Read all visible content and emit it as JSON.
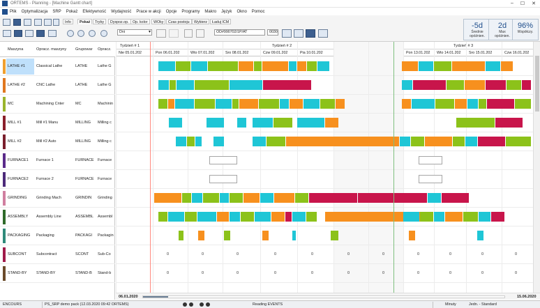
{
  "window": {
    "title": "ORTEMS - Planning - [Machine Gantt chart]"
  },
  "menu": [
    "Plik",
    "Optymalizacja",
    "SRP",
    "Pokaż",
    "Efektywność",
    "Wydajność",
    "Prace w akcji",
    "Opcje",
    "Programy",
    "Makro",
    "Język",
    "Okno",
    "Pomoc"
  ],
  "toolbar": {
    "tabs": [
      "Info",
      "Pokaż",
      "Tryby",
      "Dyspoz.op.",
      "Op. kolor",
      "WOky",
      "Czas postoju",
      "Wybierz",
      "Ładuj ICM"
    ],
    "active_tab": "Pokaż",
    "period_select": "Dni",
    "order_field": "OD#990702/1P/AT",
    "qty_field": "0030"
  },
  "kpis": [
    {
      "value": "-5d",
      "label1": "Średnie",
      "label2": "opóźnien."
    },
    {
      "value": "2d",
      "label1": "Max",
      "label2": "opóźnien."
    },
    {
      "value": "96%",
      "label1": "Współczy.",
      "label2": ""
    }
  ],
  "columns": [
    "Maszyna",
    "Opracz. maszyny",
    "Grupowar",
    "Opracz."
  ],
  "machines": [
    {
      "code": "LATHE #1",
      "desc": "Classical Lathe",
      "group": "LATHE",
      "gdesc": "Lathe G",
      "color": "#f0a030",
      "selected": true
    },
    {
      "code": "LATHE #2",
      "desc": "CNC Lathe",
      "group": "LATHE",
      "gdesc": "Lathe G",
      "color": "#e07820",
      "selected": false
    },
    {
      "code": "MC",
      "desc": "Machining Cnter",
      "group": "MC",
      "gdesc": "Machinin",
      "color": "#9ab52c",
      "selected": false
    },
    {
      "code": "MILL #1",
      "desc": "Mill #1 Manu",
      "group": "MILLING",
      "gdesc": "Milling c",
      "color": "#8a1f2a",
      "selected": false
    },
    {
      "code": "MILL #2",
      "desc": "Mill #2 Auto",
      "group": "MILLING",
      "gdesc": "Milling c",
      "color": "#7a1f2c",
      "selected": false
    },
    {
      "code": "FURNACE1",
      "desc": "Furnace 1",
      "group": "FURNACE",
      "gdesc": "Furnace",
      "color": "#5a2a8a",
      "selected": false
    },
    {
      "code": "FURNACE2",
      "desc": "Furnace 2",
      "group": "FURNACE",
      "gdesc": "Furnace",
      "color": "#4d2a7a",
      "selected": false
    },
    {
      "code": "GRINDING",
      "desc": "Grinding Mach",
      "group": "GRINDIN",
      "gdesc": "Grinding",
      "color": "#d07fa0",
      "selected": false
    },
    {
      "code": "ASSEMBLY",
      "desc": "Assembly Line",
      "group": "ASSEMBL",
      "gdesc": "Assembl",
      "color": "#2f6a2a",
      "selected": false
    },
    {
      "code": "PACKAGING",
      "desc": "Packaging",
      "group": "PACKAGI",
      "gdesc": "Packagin",
      "color": "#2f8a7a",
      "selected": false
    },
    {
      "code": "SUBCONT",
      "desc": "Subcontract",
      "group": "SCONT",
      "gdesc": "Sub-Co",
      "color": "#a01a4a",
      "selected": false
    },
    {
      "code": "STAND-BY",
      "desc": "STAND-BY",
      "group": "STAND-B",
      "gdesc": "Stand-b",
      "color": "#6a4a2a",
      "selected": false
    }
  ],
  "timeline": {
    "weeks": [
      "Tydzień # 1",
      "Tydzień # 2",
      "Tydzień # 3"
    ],
    "days": [
      "Nie 05.01.202",
      "Pon 06.01.202",
      "Wto 07.01.202",
      "Sro 08.01.202",
      "Czw 09.01.202",
      "Pia 10.01.202",
      "Sob 11.01.202",
      "Nie 12.01.202",
      "Pon 13.01.202",
      "Wto 14.01.202",
      "Sro 15.01.202",
      "Czw 16.01.202"
    ],
    "zero_label": "0",
    "start_date": "06.01.2020",
    "end_date": "15.06.2020"
  },
  "colors": {
    "cyan": "#1fc6d6",
    "green": "#8cc21a",
    "orange": "#f7901e",
    "crimson": "#c8154b",
    "current": "#ff8a80",
    "today": "#7fbf7f"
  },
  "status": {
    "module": "ENCOURS",
    "dataset": "PS_SRP demo pack (12.03.2020 09:42 ORTEMS)",
    "message": "Reading EVENTS",
    "unit": "Minuty",
    "unit2": "Jedn. - Standard"
  }
}
